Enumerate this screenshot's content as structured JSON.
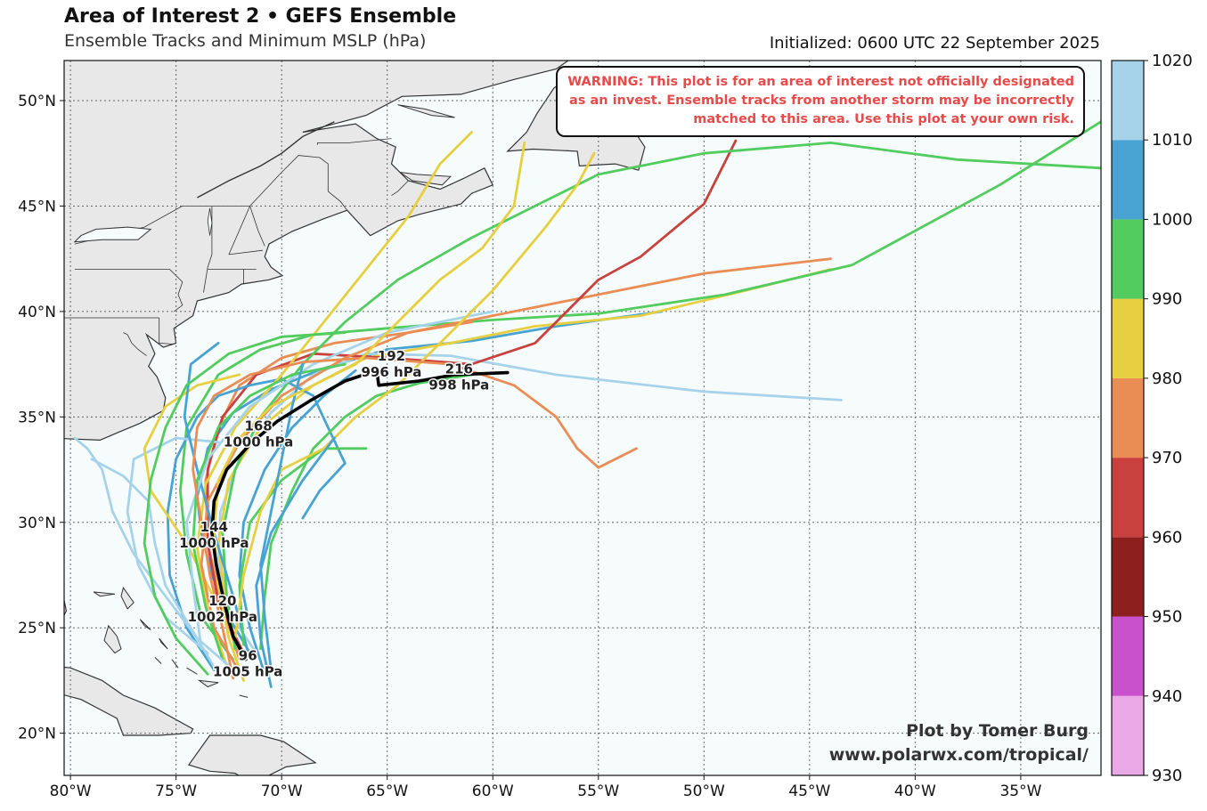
{
  "header": {
    "title": "Area of Interest 2 • GEFS Ensemble",
    "subtitle": "Ensemble Tracks and Minimum MSLP (hPa)",
    "initialized": "Initialized: 0600 UTC 22 September 2025"
  },
  "warning": "WARNING: This plot is for an area of interest not officially designated as an invest. Ensemble tracks from another storm may be incorrectly matched to this area. Use this plot at your own risk.",
  "credit": {
    "line1": "Plot by Tomer Burg",
    "line2": "www.polarwx.com/tropical/"
  },
  "map": {
    "lon_range": [
      -80.3,
      -31.2
    ],
    "lat_range": [
      18.0,
      51.9
    ],
    "ocean_color": "#f6fcfc",
    "land_color": "#e8e8e8",
    "coast_color": "#333333",
    "lon_ticks": [
      {
        "value": -80,
        "label": "80°W"
      },
      {
        "value": -75,
        "label": "75°W"
      },
      {
        "value": -70,
        "label": "70°W"
      },
      {
        "value": -65,
        "label": "65°W"
      },
      {
        "value": -60,
        "label": "60°W"
      },
      {
        "value": -55,
        "label": "55°W"
      },
      {
        "value": -50,
        "label": "50°W"
      },
      {
        "value": -45,
        "label": "45°W"
      },
      {
        "value": -40,
        "label": "40°W"
      },
      {
        "value": -35,
        "label": "35°W"
      }
    ],
    "lat_ticks": [
      {
        "value": 20,
        "label": "20°N"
      },
      {
        "value": 25,
        "label": "25°N"
      },
      {
        "value": 30,
        "label": "30°N"
      },
      {
        "value": 35,
        "label": "35°N"
      },
      {
        "value": 40,
        "label": "40°N"
      },
      {
        "value": 45,
        "label": "45°N"
      },
      {
        "value": 50,
        "label": "50°N"
      }
    ]
  },
  "colorbar": {
    "bounds": [
      "930",
      "940",
      "950",
      "960",
      "970",
      "980",
      "990",
      "1000",
      "1010",
      "1020"
    ],
    "colors": [
      "#eaa9e6",
      "#ca51cc",
      "#8e1f1f",
      "#c9413e",
      "#e98d55",
      "#e6cf41",
      "#52cc5e",
      "#49a3d2",
      "#a6d3ea"
    ]
  },
  "mean_track": {
    "color": "#000000",
    "points": [
      [
        -71.7,
        23.5
      ],
      [
        -72.3,
        24.6
      ],
      [
        -72.7,
        26.1
      ],
      [
        -73.1,
        28.0
      ],
      [
        -73.3,
        29.5
      ],
      [
        -73.2,
        31.0
      ],
      [
        -72.6,
        32.5
      ],
      [
        -71.4,
        33.8
      ],
      [
        -70.2,
        34.8
      ],
      [
        -68.6,
        35.8
      ],
      [
        -67.0,
        36.7
      ],
      [
        -65.5,
        37.2
      ],
      [
        -65.4,
        36.5
      ],
      [
        -63.5,
        36.7
      ],
      [
        -61.8,
        37.0
      ],
      [
        -59.3,
        37.1
      ]
    ],
    "labels": [
      {
        "lon": -71.6,
        "lat": 23.3,
        "hour": "96",
        "pres": "1005 hPa"
      },
      {
        "lon": -72.8,
        "lat": 25.9,
        "hour": "120",
        "pres": "1002 hPa"
      },
      {
        "lon": -73.2,
        "lat": 29.4,
        "hour": "144",
        "pres": "1000 hPa"
      },
      {
        "lon": -71.1,
        "lat": 34.2,
        "hour": "168",
        "pres": "1000 hPa"
      },
      {
        "lon": -64.8,
        "lat": 37.5,
        "hour": "192",
        "pres": "996 hPa"
      },
      {
        "lon": -61.6,
        "lat": 36.9,
        "hour": "216",
        "pres": "998 hPa"
      }
    ]
  },
  "tracks": [
    {
      "color": "#49a3d2",
      "points": [
        [
          -71.5,
          23.8
        ],
        [
          -72.5,
          25.5
        ],
        [
          -73.3,
          27.5
        ],
        [
          -73.8,
          29.5
        ],
        [
          -74.0,
          31.2
        ],
        [
          -73.5,
          33.5
        ],
        [
          -72.3,
          35.2
        ],
        [
          -70.5,
          36.3
        ],
        [
          -68.0,
          37.3
        ],
        [
          -65.0,
          38.2
        ],
        [
          -61.0,
          38.6
        ],
        [
          -57.0,
          39.3
        ],
        [
          -52.0,
          40.0
        ]
      ]
    },
    {
      "color": "#a6d3ea",
      "points": [
        [
          -71.2,
          23.8
        ],
        [
          -72.4,
          25.6
        ],
        [
          -73.0,
          28.0
        ],
        [
          -72.9,
          30.5
        ],
        [
          -72.0,
          33.0
        ],
        [
          -70.5,
          35.2
        ],
        [
          -68.5,
          37.0
        ],
        [
          -66.0,
          38.0
        ],
        [
          -62.0,
          37.9
        ],
        [
          -57.0,
          37.0
        ],
        [
          -50.0,
          36.2
        ],
        [
          -43.5,
          35.8
        ]
      ]
    },
    {
      "color": "#e6cf41",
      "points": [
        [
          -72.0,
          23.6
        ],
        [
          -72.6,
          26.0
        ],
        [
          -73.0,
          29.0
        ],
        [
          -72.5,
          32.0
        ],
        [
          -71.0,
          34.5
        ],
        [
          -68.5,
          36.5
        ],
        [
          -66.0,
          37.8
        ],
        [
          -62.0,
          38.5
        ],
        [
          -58.0,
          39.3
        ],
        [
          -53.0,
          39.8
        ],
        [
          -48.0,
          41.0
        ],
        [
          -44.0,
          42.0
        ]
      ]
    },
    {
      "color": "#52cc5e",
      "points": [
        [
          -72.3,
          23.5
        ],
        [
          -73.8,
          25.5
        ],
        [
          -74.5,
          28.5
        ],
        [
          -74.8,
          31.5
        ],
        [
          -74.5,
          34.5
        ],
        [
          -73.0,
          37.0
        ],
        [
          -71.0,
          38.2
        ],
        [
          -68.5,
          38.9
        ],
        [
          -65.0,
          39.2
        ],
        [
          -60.0,
          39.6
        ],
        [
          -55.0,
          39.9
        ],
        [
          -49.0,
          40.8
        ],
        [
          -43.0,
          42.2
        ],
        [
          -36.0,
          46.0
        ],
        [
          -31.2,
          49.0
        ]
      ]
    },
    {
      "color": "#e98d55",
      "points": [
        [
          -72.0,
          23.5
        ],
        [
          -72.8,
          26.0
        ],
        [
          -73.5,
          29.0
        ],
        [
          -73.6,
          32.0
        ],
        [
          -73.0,
          34.5
        ],
        [
          -72.0,
          36.5
        ],
        [
          -70.0,
          37.8
        ],
        [
          -67.5,
          38.5
        ],
        [
          -64.0,
          39.0
        ],
        [
          -59.0,
          40.0
        ],
        [
          -55.0,
          40.8
        ],
        [
          -50.0,
          41.8
        ],
        [
          -44.0,
          42.5
        ]
      ]
    },
    {
      "color": "#c9413e",
      "points": [
        [
          -71.8,
          23.8
        ],
        [
          -73.0,
          26.2
        ],
        [
          -73.5,
          29.0
        ],
        [
          -73.5,
          32.5
        ],
        [
          -72.8,
          35.0
        ],
        [
          -71.2,
          37.0
        ],
        [
          -68.5,
          38.0
        ],
        [
          -65.0,
          37.8
        ],
        [
          -61.0,
          37.5
        ],
        [
          -58.0,
          38.5
        ],
        [
          -55.0,
          41.5
        ],
        [
          -53.0,
          42.6
        ],
        [
          -50.0,
          45.1
        ],
        [
          -48.5,
          48.1
        ]
      ]
    },
    {
      "color": "#49a3d2",
      "points": [
        [
          -73.2,
          23.0
        ],
        [
          -74.5,
          25.0
        ],
        [
          -75.3,
          27.5
        ],
        [
          -75.4,
          30.5
        ],
        [
          -75.0,
          33.0
        ],
        [
          -74.0,
          35.0
        ],
        [
          -73.0,
          36.0
        ],
        [
          -71.5,
          36.5
        ],
        [
          -70.0,
          36.8
        ],
        [
          -68.5,
          36.0
        ],
        [
          -67.8,
          34.5
        ],
        [
          -67.0,
          32.8
        ],
        [
          -68.2,
          31.5
        ],
        [
          -69.0,
          30.2
        ]
      ]
    },
    {
      "color": "#52cc5e",
      "points": [
        [
          -72.2,
          24.0
        ],
        [
          -72.6,
          26.5
        ],
        [
          -72.8,
          29.5
        ],
        [
          -72.2,
          32.5
        ],
        [
          -71.0,
          35.0
        ],
        [
          -69.0,
          37.5
        ],
        [
          -67.0,
          39.5
        ],
        [
          -64.5,
          41.5
        ],
        [
          -61.0,
          43.5
        ],
        [
          -58.0,
          45.0
        ],
        [
          -55.0,
          46.5
        ],
        [
          -50.0,
          47.5
        ],
        [
          -44.0,
          48.0
        ],
        [
          -38.0,
          47.2
        ],
        [
          -31.2,
          46.8
        ]
      ]
    },
    {
      "color": "#e6cf41",
      "points": [
        [
          -72.6,
          23.2
        ],
        [
          -73.5,
          25.8
        ],
        [
          -74.0,
          28.8
        ],
        [
          -73.6,
          31.8
        ],
        [
          -72.2,
          34.5
        ],
        [
          -70.0,
          37.0
        ],
        [
          -68.0,
          39.5
        ],
        [
          -66.0,
          42.0
        ],
        [
          -64.0,
          44.5
        ],
        [
          -62.5,
          47.0
        ],
        [
          -61.0,
          48.5
        ]
      ]
    },
    {
      "color": "#49a3d2",
      "points": [
        [
          -70.8,
          22.8
        ],
        [
          -71.5,
          25.0
        ],
        [
          -72.0,
          27.5
        ],
        [
          -71.8,
          30.0
        ],
        [
          -70.8,
          32.5
        ],
        [
          -69.5,
          34.5
        ],
        [
          -68.0,
          36.0
        ],
        [
          -66.5,
          37.2
        ]
      ]
    },
    {
      "color": "#a6d3ea",
      "points": [
        [
          -73.5,
          23.8
        ],
        [
          -75.5,
          25.5
        ],
        [
          -76.8,
          28.0
        ],
        [
          -77.3,
          30.5
        ],
        [
          -77.0,
          33.0
        ],
        [
          -75.0,
          34.0
        ],
        [
          -73.0,
          33.8
        ]
      ]
    },
    {
      "color": "#e6cf41",
      "points": [
        [
          -73.0,
          26.0
        ],
        [
          -74.5,
          29.0
        ],
        [
          -76.2,
          31.5
        ],
        [
          -76.5,
          33.5
        ],
        [
          -75.5,
          35.5
        ],
        [
          -74.0,
          36.5
        ],
        [
          -72.0,
          37.0
        ]
      ]
    },
    {
      "color": "#52cc5e",
      "points": [
        [
          -71.0,
          24.0
        ],
        [
          -70.8,
          26.5
        ],
        [
          -70.5,
          29.0
        ],
        [
          -69.5,
          31.5
        ],
        [
          -68.5,
          33.5
        ],
        [
          -67.0,
          35.0
        ],
        [
          -65.5,
          36.0
        ],
        [
          -63.5,
          36.6
        ],
        [
          -61.0,
          37.0
        ]
      ]
    },
    {
      "color": "#e98d55",
      "points": [
        [
          -72.0,
          22.9
        ],
        [
          -73.2,
          25.0
        ],
        [
          -73.8,
          28.0
        ],
        [
          -73.5,
          31.0
        ],
        [
          -72.0,
          33.8
        ],
        [
          -70.0,
          36.0
        ],
        [
          -67.0,
          37.8
        ],
        [
          -64.0,
          39.0
        ],
        [
          -61.0,
          39.5
        ]
      ]
    },
    {
      "color": "#49a3d2",
      "points": [
        [
          -71.5,
          23.5
        ],
        [
          -72.3,
          26.5
        ],
        [
          -73.2,
          29.5
        ],
        [
          -74.0,
          32.5
        ],
        [
          -74.6,
          35.0
        ],
        [
          -74.3,
          37.5
        ],
        [
          -73.0,
          38.5
        ]
      ]
    },
    {
      "color": "#a6d3ea",
      "points": [
        [
          -73.8,
          24.0
        ],
        [
          -74.2,
          27.0
        ],
        [
          -74.5,
          30.0
        ],
        [
          -73.5,
          33.0
        ],
        [
          -71.5,
          35.5
        ],
        [
          -68.5,
          37.5
        ],
        [
          -65.0,
          39.0
        ],
        [
          -60.0,
          40.0
        ]
      ]
    },
    {
      "color": "#52cc5e",
      "points": [
        [
          -71.8,
          24.2
        ],
        [
          -72.0,
          27.0
        ],
        [
          -71.5,
          30.0
        ],
        [
          -70.0,
          32.0
        ],
        [
          -68.0,
          33.5
        ],
        [
          -66.0,
          33.5
        ]
      ]
    },
    {
      "color": "#e6cf41",
      "points": [
        [
          -72.2,
          24.5
        ],
        [
          -71.8,
          27.5
        ],
        [
          -71.0,
          30.5
        ],
        [
          -70.0,
          32.5
        ],
        [
          -68.0,
          33.5
        ],
        [
          -66.5,
          35.0
        ],
        [
          -64.5,
          36.5
        ],
        [
          -62.5,
          38.5
        ],
        [
          -60.0,
          41.0
        ],
        [
          -57.5,
          44.0
        ],
        [
          -56.0,
          46.0
        ],
        [
          -55.2,
          47.5
        ]
      ]
    },
    {
      "color": "#49a3d2",
      "points": [
        [
          -70.5,
          22.2
        ],
        [
          -71.0,
          24.5
        ],
        [
          -71.2,
          27.0
        ],
        [
          -70.5,
          29.5
        ],
        [
          -69.0,
          32.0
        ],
        [
          -67.5,
          34.0
        ]
      ]
    },
    {
      "color": "#a6d3ea",
      "points": [
        [
          -73.0,
          22.8
        ],
        [
          -74.3,
          25.0
        ],
        [
          -75.5,
          27.0
        ],
        [
          -76.0,
          29.0
        ],
        [
          -76.3,
          31.0
        ],
        [
          -77.5,
          32.2
        ],
        [
          -79.0,
          33.0
        ]
      ]
    },
    {
      "color": "#52cc5e",
      "points": [
        [
          -72.8,
          23.5
        ],
        [
          -73.6,
          26.0
        ],
        [
          -74.2,
          29.0
        ],
        [
          -74.0,
          32.0
        ],
        [
          -73.0,
          34.5
        ],
        [
          -71.5,
          36.0
        ],
        [
          -69.5,
          37.0
        ],
        [
          -67.0,
          37.5
        ]
      ]
    },
    {
      "color": "#e98d55",
      "points": [
        [
          -72.3,
          22.6
        ],
        [
          -72.8,
          25.0
        ],
        [
          -73.4,
          27.5
        ],
        [
          -73.8,
          30.0
        ],
        [
          -74.2,
          32.5
        ],
        [
          -74.0,
          34.5
        ],
        [
          -73.2,
          36.0
        ],
        [
          -71.5,
          37.0
        ],
        [
          -69.0,
          37.6
        ],
        [
          -66.0,
          37.8
        ],
        [
          -62.0,
          37.5
        ],
        [
          -59.0,
          36.5
        ],
        [
          -57.0,
          35.0
        ],
        [
          -56.0,
          33.5
        ],
        [
          -55.0,
          32.6
        ],
        [
          -53.2,
          33.5
        ]
      ]
    },
    {
      "color": "#49a3d2",
      "points": [
        [
          -70.5,
          23.0
        ],
        [
          -70.8,
          25.5
        ],
        [
          -71.0,
          28.0
        ],
        [
          -70.5,
          30.5
        ],
        [
          -70.0,
          33.0
        ],
        [
          -69.5,
          35.5
        ],
        [
          -69.0,
          37.5
        ]
      ]
    },
    {
      "color": "#a6d3ea",
      "points": [
        [
          -72.5,
          23.2
        ],
        [
          -74.0,
          24.5
        ],
        [
          -75.5,
          26.5
        ],
        [
          -77.0,
          28.5
        ],
        [
          -78.0,
          30.5
        ],
        [
          -78.5,
          32.5
        ],
        [
          -79.2,
          33.5
        ],
        [
          -79.8,
          34.0
        ]
      ]
    },
    {
      "color": "#52cc5e",
      "points": [
        [
          -73.5,
          22.8
        ],
        [
          -75.0,
          24.5
        ],
        [
          -76.0,
          26.5
        ],
        [
          -76.5,
          29.0
        ],
        [
          -76.2,
          32.0
        ],
        [
          -75.5,
          34.5
        ],
        [
          -74.5,
          36.5
        ],
        [
          -72.5,
          38.0
        ],
        [
          -70.0,
          38.8
        ],
        [
          -67.0,
          39.0
        ]
      ]
    },
    {
      "color": "#e6cf41",
      "points": [
        [
          -71.8,
          22.5
        ],
        [
          -72.5,
          24.5
        ],
        [
          -73.0,
          27.0
        ],
        [
          -73.2,
          29.5
        ],
        [
          -73.0,
          32.0
        ],
        [
          -72.0,
          34.0
        ],
        [
          -70.5,
          35.5
        ],
        [
          -68.5,
          36.5
        ],
        [
          -66.5,
          37.5
        ],
        [
          -64.5,
          39.5
        ],
        [
          -62.5,
          41.5
        ],
        [
          -60.5,
          43.0
        ],
        [
          -59.0,
          45.0
        ],
        [
          -58.5,
          48.0
        ]
      ]
    }
  ]
}
